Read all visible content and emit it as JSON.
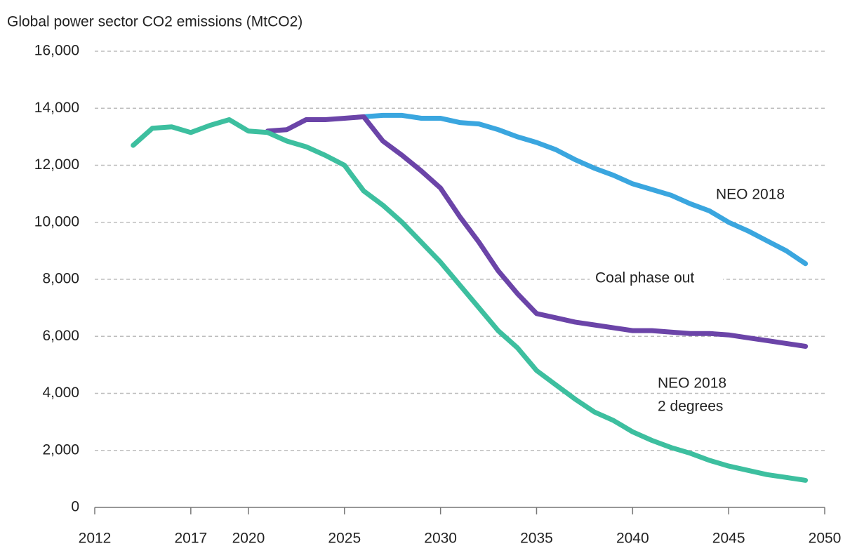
{
  "chart_data": {
    "type": "line",
    "title": "Global power sector CO2 emissions (MtCO2)",
    "xlim": [
      2012,
      2050
    ],
    "xticks": [
      2012,
      2017,
      2020,
      2025,
      2030,
      2035,
      2040,
      2045,
      2050
    ],
    "ylim": [
      0,
      16000
    ],
    "yticks": [
      0,
      {
        "value": 2000,
        "label": "2,000"
      },
      {
        "value": 4000,
        "label": "4,000"
      },
      {
        "value": 6000,
        "label": "6,000"
      },
      {
        "value": 8000,
        "label": "8,000"
      },
      {
        "value": 10000,
        "label": "10,000"
      },
      {
        "value": 12000,
        "label": "12,000"
      },
      {
        "value": 14000,
        "label": "14,000"
      },
      {
        "value": 16000,
        "label": "16,000"
      }
    ],
    "grid": true,
    "series": [
      {
        "name": "NEO 2018",
        "color": "#3aa6df",
        "x": [
          2026,
          2027,
          2028,
          2029,
          2030,
          2031,
          2032,
          2033,
          2034,
          2035,
          2036,
          2037,
          2038,
          2039,
          2040,
          2041,
          2042,
          2043,
          2044,
          2045,
          2046,
          2047,
          2048,
          2049
        ],
        "values": [
          13700,
          13750,
          13750,
          13650,
          13650,
          13500,
          13450,
          13250,
          13000,
          12800,
          12550,
          12200,
          11900,
          11650,
          11350,
          11150,
          10950,
          10650,
          10400,
          10000,
          9700,
          9350,
          9000,
          8550
        ]
      },
      {
        "name": "Coal phase out",
        "color": "#6b44a8",
        "x": [
          2021,
          2022,
          2023,
          2024,
          2025,
          2026,
          2027,
          2028,
          2029,
          2030,
          2031,
          2032,
          2033,
          2034,
          2035,
          2036,
          2037,
          2038,
          2039,
          2040,
          2041,
          2042,
          2043,
          2044,
          2045,
          2046,
          2047,
          2048,
          2049
        ],
        "values": [
          13200,
          13250,
          13600,
          13600,
          13650,
          13700,
          12850,
          12350,
          11800,
          11200,
          10200,
          9300,
          8300,
          7500,
          6800,
          6650,
          6500,
          6400,
          6300,
          6200,
          6200,
          6150,
          6100,
          6100,
          6050,
          5950,
          5850,
          5750,
          5650
        ]
      },
      {
        "name": "NEO 2018 2 degrees",
        "color": "#3dbf9f",
        "x": [
          2014,
          2015,
          2016,
          2017,
          2018,
          2019,
          2020,
          2021,
          2022,
          2023,
          2024,
          2025,
          2026,
          2027,
          2028,
          2029,
          2030,
          2031,
          2032,
          2033,
          2034,
          2035,
          2036,
          2037,
          2038,
          2039,
          2040,
          2041,
          2042,
          2043,
          2044,
          2045,
          2046,
          2047,
          2048,
          2049
        ],
        "values": [
          12700,
          13300,
          13350,
          13150,
          13400,
          13600,
          13200,
          13150,
          12850,
          12650,
          12350,
          12000,
          11100,
          10600,
          10000,
          9300,
          8600,
          7800,
          7000,
          6200,
          5600,
          4800,
          4300,
          3800,
          3350,
          3050,
          2650,
          2350,
          2100,
          1900,
          1650,
          1450,
          1300,
          1150,
          1050,
          950
        ]
      }
    ],
    "annotations": [
      "NEO 2018",
      "Coal phase out",
      "NEO 2018",
      "2 degrees"
    ]
  }
}
